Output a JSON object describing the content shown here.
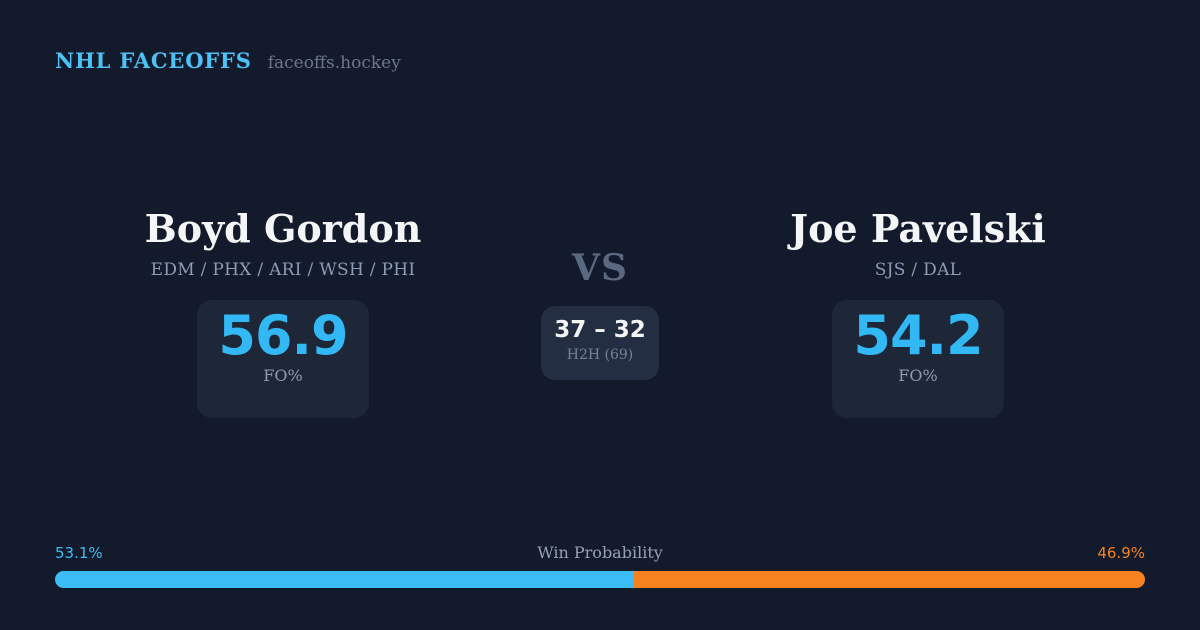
{
  "header": {
    "title": "NHL FACEOFFS",
    "domain": "faceoffs.hockey"
  },
  "players": {
    "left": {
      "name": "Boyd Gordon",
      "teams": "EDM / PHX / ARI / WSH / PHI",
      "fo_value": "56.9",
      "fo_label": "FO%"
    },
    "right": {
      "name": "Joe Pavelski",
      "teams": "SJS / DAL",
      "fo_value": "54.2",
      "fo_label": "FO%"
    }
  },
  "versus": {
    "label": "VS",
    "h2h_score": "37 – 32",
    "h2h_label": "H2H (69)"
  },
  "win_probability": {
    "title": "Win Probability",
    "left_label": "53.1%",
    "right_label": "46.9%",
    "left_value": 53.1,
    "right_value": 46.9
  },
  "colors": {
    "background": "#121a2b",
    "card": "#1d2737",
    "h2h_card": "#232e42",
    "accent_blue": "#3cbcf6",
    "accent_orange": "#f5821f",
    "brand_blue": "#4cc2f7",
    "text_primary": "#f4f5f6",
    "text_teams": "#8d9cb5",
    "text_muted": "#929bab",
    "vs_text": "#5a6880"
  }
}
